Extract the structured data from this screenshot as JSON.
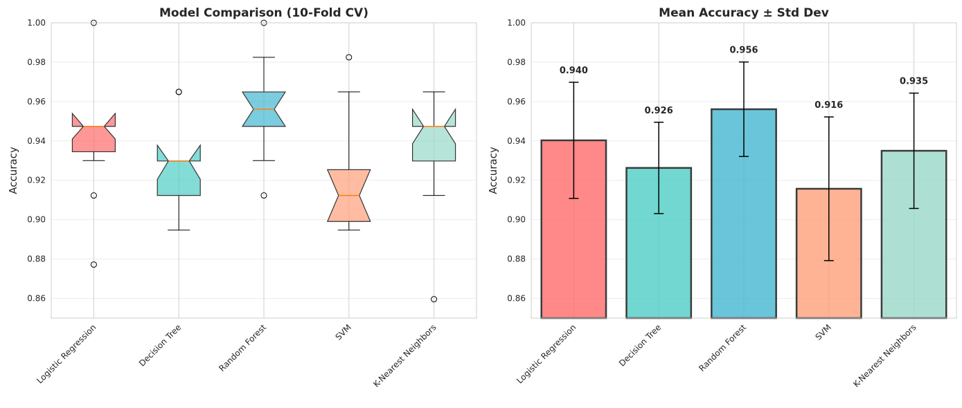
{
  "chart_data": [
    {
      "type": "boxplot",
      "title": "Model Comparison (10-Fold CV)",
      "ylabel": "Accuracy",
      "ylim": [
        0.85,
        1.0
      ],
      "yticks": [
        "0.86",
        "0.88",
        "0.90",
        "0.92",
        "0.94",
        "0.96",
        "0.98",
        "1.00"
      ],
      "grid": true,
      "notched": true,
      "categories": [
        "Logistic Regression",
        "Decision Tree",
        "Random Forest",
        "SVM",
        "K-Nearest Neighbors"
      ],
      "colors": [
        "#FF6B6B",
        "#4ECDC4",
        "#45B7D1",
        "#FFA07A",
        "#98D8C8"
      ],
      "boxes": [
        {
          "whislo": 0.93,
          "q1": 0.9345,
          "med": 0.9474,
          "q3": 0.9474,
          "whishi": 0.9474,
          "cilo": 0.941,
          "cihi": 0.954,
          "fliers": [
            1.0,
            0.9123,
            0.8772
          ]
        },
        {
          "whislo": 0.8947,
          "q1": 0.9123,
          "med": 0.9298,
          "q3": 0.9298,
          "whishi": 0.9298,
          "cilo": 0.9205,
          "cihi": 0.9378,
          "fliers": [
            0.9649,
            0.9649
          ]
        },
        {
          "whislo": 0.93,
          "q1": 0.9474,
          "med": 0.9561,
          "q3": 0.9649,
          "whishi": 0.9825,
          "cilo": 0.9474,
          "cihi": 0.9649,
          "fliers": [
            1.0,
            0.9123
          ]
        },
        {
          "whislo": 0.8947,
          "q1": 0.8991,
          "med": 0.9123,
          "q3": 0.9254,
          "whishi": 0.9649,
          "cilo": 0.8991,
          "cihi": 0.9254,
          "fliers": [
            0.9825
          ]
        },
        {
          "whislo": 0.9123,
          "q1": 0.9298,
          "med": 0.9474,
          "q3": 0.9474,
          "whishi": 0.9649,
          "cilo": 0.9386,
          "cihi": 0.9561,
          "fliers": [
            0.8596
          ]
        }
      ]
    },
    {
      "type": "bar",
      "title": "Mean Accuracy ± Std Dev",
      "ylabel": "Accuracy",
      "ylim": [
        0.85,
        1.0
      ],
      "yticks": [
        "0.86",
        "0.88",
        "0.90",
        "0.92",
        "0.94",
        "0.96",
        "0.98",
        "1.00"
      ],
      "grid": true,
      "categories": [
        "Logistic Regression",
        "Decision Tree",
        "Random Forest",
        "SVM",
        "K-Nearest Neighbors"
      ],
      "colors": [
        "#FF6B6B",
        "#4ECDC4",
        "#45B7D1",
        "#FFA07A",
        "#98D8C8"
      ],
      "values": [
        0.9403,
        0.9263,
        0.9561,
        0.9157,
        0.935
      ],
      "errors": [
        0.0295,
        0.0232,
        0.024,
        0.0365,
        0.0293
      ],
      "data_labels": [
        "0.940",
        "0.926",
        "0.956",
        "0.916",
        "0.935"
      ]
    }
  ]
}
